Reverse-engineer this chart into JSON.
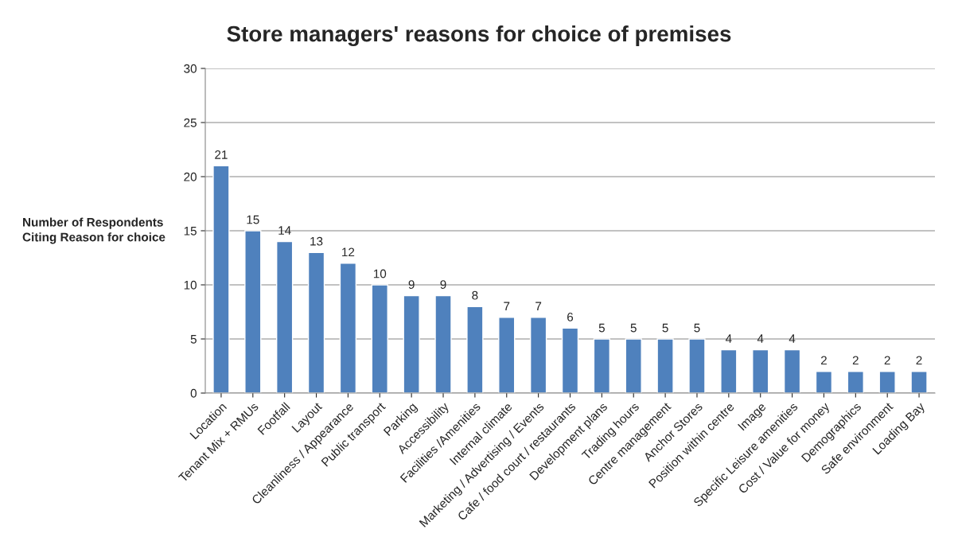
{
  "chart_data": {
    "type": "bar",
    "title": "Store managers' reasons for choice of premises",
    "ylabel": "Number of Respondents\nCiting Reason for choice",
    "categories": [
      "Location",
      "Tenant Mix + RMUs",
      "Footfall",
      "Layout",
      "Cleanliness / Appearance",
      "Public transport",
      "Parking",
      "Accessibility",
      "Facilities /Amenities",
      "Internal climate",
      "Marketing / Advertising / Events",
      "Cafe / food court / restaurants",
      "Development plans",
      "Trading hours",
      "Centre management",
      "Anchor Stores",
      "Position within centre",
      "Image",
      "Specific Leisure amenities",
      "Cost / Value for money",
      "Demographics",
      "Safe environment",
      "Loading Bay"
    ],
    "values": [
      21,
      15,
      14,
      13,
      12,
      10,
      9,
      9,
      8,
      7,
      7,
      6,
      5,
      5,
      5,
      5,
      4,
      4,
      4,
      2,
      2,
      2,
      2
    ],
    "color": "#4f81bd",
    "ylim": [
      0,
      30
    ],
    "yticks": [
      0,
      5,
      10,
      15,
      20,
      25,
      30
    ],
    "grid": "y",
    "data_labels": true
  }
}
